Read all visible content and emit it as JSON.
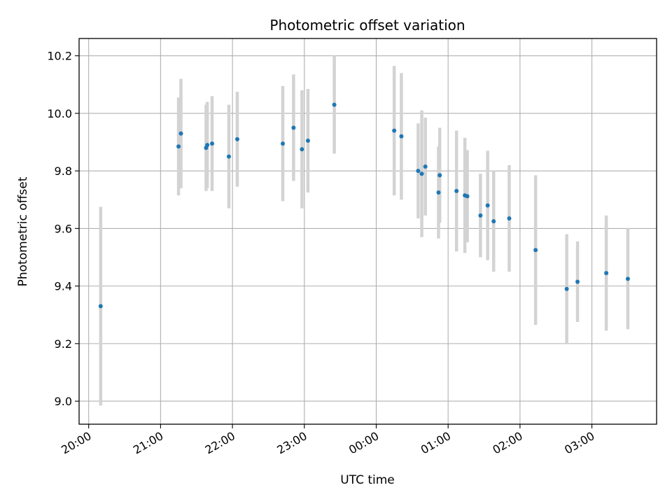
{
  "chart_data": {
    "type": "scatter",
    "title": "Photometric offset variation",
    "xlabel": "UTC time",
    "ylabel": "Photometric offset",
    "x_axis_type": "time",
    "xlim": [
      "19:52",
      "27:54"
    ],
    "ylim": [
      8.92,
      10.26
    ],
    "grid": true,
    "legend": false,
    "colors": {
      "points": "#1f77b4",
      "errorbars": "#d3d3d3",
      "grid": "#b0b0b0"
    },
    "x_ticks": [
      "20:00",
      "21:00",
      "22:00",
      "23:00",
      "00:00",
      "01:00",
      "02:00",
      "03:00"
    ],
    "y_ticks": [
      "9.0",
      "9.2",
      "9.4",
      "9.6",
      "9.8",
      "10.0",
      "10.2"
    ],
    "points": [
      {
        "x": "20:10",
        "y": 9.33,
        "err": 0.345
      },
      {
        "x": "21:15",
        "y": 9.885,
        "err": 0.17
      },
      {
        "x": "21:17",
        "y": 9.93,
        "err": 0.19
      },
      {
        "x": "21:38",
        "y": 9.88,
        "err": 0.15
      },
      {
        "x": "21:39",
        "y": 9.89,
        "err": 0.15
      },
      {
        "x": "21:43",
        "y": 9.895,
        "err": 0.165
      },
      {
        "x": "21:57",
        "y": 9.85,
        "err": 0.18
      },
      {
        "x": "22:04",
        "y": 9.91,
        "err": 0.165
      },
      {
        "x": "22:42",
        "y": 9.895,
        "err": 0.2
      },
      {
        "x": "22:51",
        "y": 9.95,
        "err": 0.185
      },
      {
        "x": "22:58",
        "y": 9.875,
        "err": 0.205
      },
      {
        "x": "23:03",
        "y": 9.905,
        "err": 0.18
      },
      {
        "x": "23:25",
        "y": 10.03,
        "err": 0.17
      },
      {
        "x": "24:15",
        "y": 9.94,
        "err": 0.225
      },
      {
        "x": "24:21",
        "y": 9.92,
        "err": 0.22
      },
      {
        "x": "24:35",
        "y": 9.8,
        "err": 0.165
      },
      {
        "x": "24:38",
        "y": 9.79,
        "err": 0.22
      },
      {
        "x": "24:41",
        "y": 9.815,
        "err": 0.17
      },
      {
        "x": "24:52",
        "y": 9.725,
        "err": 0.16
      },
      {
        "x": "24:53",
        "y": 9.785,
        "err": 0.165
      },
      {
        "x": "25:07",
        "y": 9.73,
        "err": 0.21
      },
      {
        "x": "25:14",
        "y": 9.715,
        "err": 0.2
      },
      {
        "x": "25:16",
        "y": 9.712,
        "err": 0.16
      },
      {
        "x": "25:27",
        "y": 9.645,
        "err": 0.145
      },
      {
        "x": "25:33",
        "y": 9.68,
        "err": 0.19
      },
      {
        "x": "25:38",
        "y": 9.625,
        "err": 0.175
      },
      {
        "x": "25:51",
        "y": 9.635,
        "err": 0.185
      },
      {
        "x": "26:13",
        "y": 9.525,
        "err": 0.26
      },
      {
        "x": "26:39",
        "y": 9.39,
        "err": 0.19
      },
      {
        "x": "26:48",
        "y": 9.415,
        "err": 0.14
      },
      {
        "x": "27:12",
        "y": 9.445,
        "err": 0.2
      },
      {
        "x": "27:30",
        "y": 9.425,
        "err": 0.175
      }
    ]
  }
}
